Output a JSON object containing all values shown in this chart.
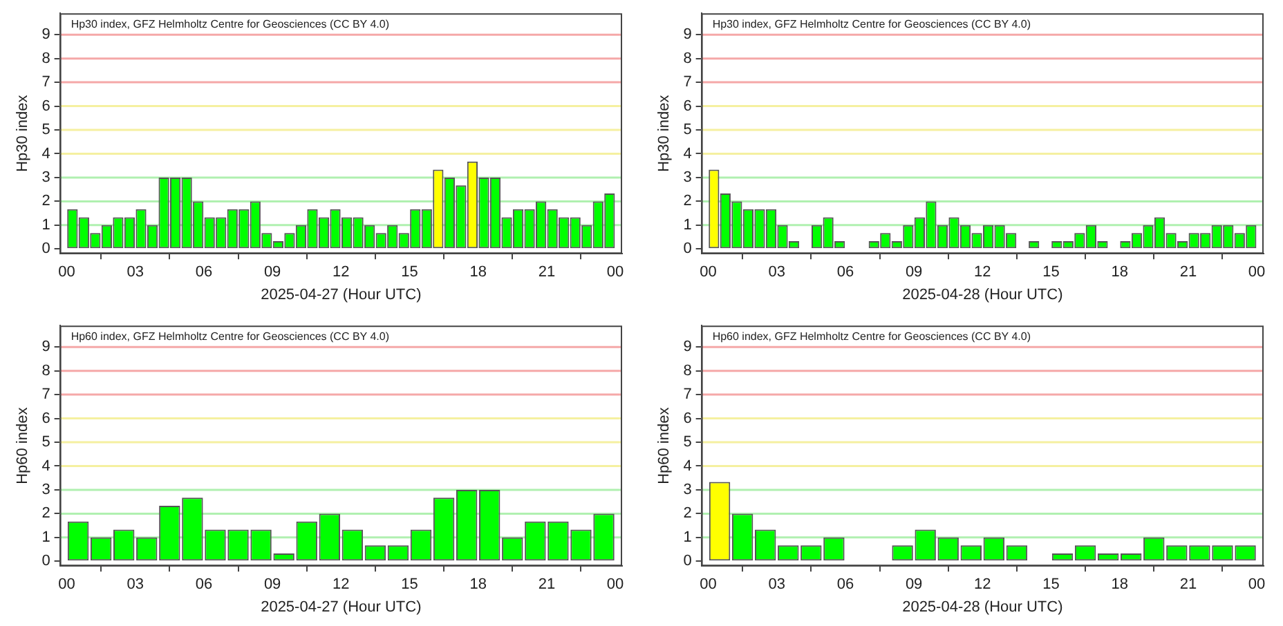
{
  "chart_data": [
    {
      "type": "bar",
      "title": "Hp30 index, GFZ Helmholtz Centre for Geosciences (CC BY 4.0)",
      "xlabel": "2025-04-27 (Hour UTC)",
      "ylabel": "Hp30 index",
      "x": [
        0.25,
        0.75,
        1.25,
        1.75,
        2.25,
        2.75,
        3.25,
        3.75,
        4.25,
        4.75,
        5.25,
        5.75,
        6.25,
        6.75,
        7.25,
        7.75,
        8.25,
        8.75,
        9.25,
        9.75,
        10.25,
        10.75,
        11.25,
        11.75,
        12.25,
        12.75,
        13.25,
        13.75,
        14.25,
        14.75,
        15.25,
        15.75,
        16.25,
        16.75,
        17.25,
        17.75,
        18.25,
        18.75,
        19.25,
        19.75,
        20.25,
        20.75,
        21.25,
        21.75,
        22.25,
        22.75,
        23.25,
        23.75
      ],
      "values": [
        1.67,
        1.33,
        0.67,
        1,
        1.33,
        1.33,
        1.67,
        1,
        3,
        3,
        3,
        2,
        1.33,
        1.33,
        1.67,
        1.67,
        2,
        0.67,
        0.33,
        0.67,
        1,
        1.67,
        1.33,
        1.67,
        1.33,
        1.33,
        1,
        0.67,
        1,
        0.67,
        1.67,
        1.67,
        3.33,
        3,
        2.67,
        3.67,
        3,
        3,
        1.33,
        1.67,
        1.67,
        2,
        1.67,
        1.33,
        1.33,
        1,
        2,
        2.33
      ],
      "colors": [
        "#00ff00",
        "#00ff00",
        "#00ff00",
        "#00ff00",
        "#00ff00",
        "#00ff00",
        "#00ff00",
        "#00ff00",
        "#00ff00",
        "#00ff00",
        "#00ff00",
        "#00ff00",
        "#00ff00",
        "#00ff00",
        "#00ff00",
        "#00ff00",
        "#00ff00",
        "#00ff00",
        "#00ff00",
        "#00ff00",
        "#00ff00",
        "#00ff00",
        "#00ff00",
        "#00ff00",
        "#00ff00",
        "#00ff00",
        "#00ff00",
        "#00ff00",
        "#00ff00",
        "#00ff00",
        "#00ff00",
        "#00ff00",
        "#ffff00",
        "#00ff00",
        "#00ff00",
        "#ffff00",
        "#00ff00",
        "#00ff00",
        "#00ff00",
        "#00ff00",
        "#00ff00",
        "#00ff00",
        "#00ff00",
        "#00ff00",
        "#00ff00",
        "#00ff00",
        "#00ff00",
        "#00ff00"
      ],
      "xlim": [
        -0.3,
        24.3
      ],
      "xticks": [
        {
          "value": 0,
          "label": "00"
        },
        {
          "value": 3,
          "label": "03"
        },
        {
          "value": 6,
          "label": "06"
        },
        {
          "value": 9,
          "label": "09"
        },
        {
          "value": 12,
          "label": "12"
        },
        {
          "value": 15,
          "label": "15"
        },
        {
          "value": 18,
          "label": "18"
        },
        {
          "value": 21,
          "label": "21"
        },
        {
          "value": 24,
          "label": "00"
        }
      ],
      "ylim": [
        -0.2,
        9.9
      ],
      "yticks": [
        0,
        1,
        2,
        3,
        4,
        5,
        6,
        7,
        8,
        9
      ],
      "ref_lines": [
        {
          "axis": "y",
          "value": 1,
          "color": "#b0f0b0"
        },
        {
          "axis": "y",
          "value": 2,
          "color": "#b0f0b0"
        },
        {
          "axis": "y",
          "value": 3,
          "color": "#b0f0b0"
        },
        {
          "axis": "y",
          "value": 4,
          "color": "#f5f0a0"
        },
        {
          "axis": "y",
          "value": 5,
          "color": "#f5f0a0"
        },
        {
          "axis": "y",
          "value": 6,
          "color": "#f5f0a0"
        },
        {
          "axis": "y",
          "value": 7,
          "color": "#f5a8a8"
        },
        {
          "axis": "y",
          "value": 8,
          "color": "#f5a8a8"
        },
        {
          "axis": "y",
          "value": 9,
          "color": "#f5a8a8"
        }
      ]
    },
    {
      "type": "bar",
      "title": "Hp30 index, GFZ Helmholtz Centre for Geosciences (CC BY 4.0)",
      "xlabel": "2025-04-28 (Hour UTC)",
      "ylabel": "Hp30 index",
      "x": [
        0.25,
        0.75,
        1.25,
        1.75,
        2.25,
        2.75,
        3.25,
        3.75,
        4.25,
        4.75,
        5.25,
        5.75,
        6.25,
        6.75,
        7.25,
        7.75,
        8.25,
        8.75,
        9.25,
        9.75,
        10.25,
        10.75,
        11.25,
        11.75,
        12.25,
        12.75,
        13.25,
        13.75,
        14.25,
        14.75,
        15.25,
        15.75,
        16.25,
        16.75,
        17.25,
        17.75,
        18.25,
        18.75,
        19.25,
        19.75,
        20.25,
        20.75,
        21.25,
        21.75,
        22.25,
        22.75,
        23.25,
        23.75
      ],
      "values": [
        3.33,
        2.33,
        2,
        1.67,
        1.67,
        1.67,
        1,
        0.33,
        0,
        1,
        1.33,
        0.33,
        0,
        0,
        0.33,
        0.67,
        0.33,
        1,
        1.33,
        2,
        1,
        1.33,
        1,
        0.67,
        1,
        1,
        0.67,
        0,
        0.33,
        0,
        0.33,
        0.33,
        0.67,
        1,
        0.33,
        0,
        0.33,
        0.67,
        1,
        1.33,
        0.67,
        0.33,
        0.67,
        0.67,
        1,
        1,
        0.67,
        1
      ],
      "colors": [
        "#ffff00",
        "#00ff00",
        "#00ff00",
        "#00ff00",
        "#00ff00",
        "#00ff00",
        "#00ff00",
        "#00ff00",
        "#00ff00",
        "#00ff00",
        "#00ff00",
        "#00ff00",
        "#00ff00",
        "#00ff00",
        "#00ff00",
        "#00ff00",
        "#00ff00",
        "#00ff00",
        "#00ff00",
        "#00ff00",
        "#00ff00",
        "#00ff00",
        "#00ff00",
        "#00ff00",
        "#00ff00",
        "#00ff00",
        "#00ff00",
        "#00ff00",
        "#00ff00",
        "#00ff00",
        "#00ff00",
        "#00ff00",
        "#00ff00",
        "#00ff00",
        "#00ff00",
        "#00ff00",
        "#00ff00",
        "#00ff00",
        "#00ff00",
        "#00ff00",
        "#00ff00",
        "#00ff00",
        "#00ff00",
        "#00ff00",
        "#00ff00",
        "#00ff00",
        "#00ff00",
        "#00ff00"
      ],
      "xlim": [
        -0.3,
        24.3
      ],
      "xticks": [
        {
          "value": 0,
          "label": "00"
        },
        {
          "value": 3,
          "label": "03"
        },
        {
          "value": 6,
          "label": "06"
        },
        {
          "value": 9,
          "label": "09"
        },
        {
          "value": 12,
          "label": "12"
        },
        {
          "value": 15,
          "label": "15"
        },
        {
          "value": 18,
          "label": "18"
        },
        {
          "value": 21,
          "label": "21"
        },
        {
          "value": 24,
          "label": "00"
        }
      ],
      "ylim": [
        -0.2,
        9.9
      ],
      "yticks": [
        0,
        1,
        2,
        3,
        4,
        5,
        6,
        7,
        8,
        9
      ],
      "ref_lines": [
        {
          "axis": "y",
          "value": 1,
          "color": "#b0f0b0"
        },
        {
          "axis": "y",
          "value": 2,
          "color": "#b0f0b0"
        },
        {
          "axis": "y",
          "value": 3,
          "color": "#b0f0b0"
        },
        {
          "axis": "y",
          "value": 4,
          "color": "#f5f0a0"
        },
        {
          "axis": "y",
          "value": 5,
          "color": "#f5f0a0"
        },
        {
          "axis": "y",
          "value": 6,
          "color": "#f5f0a0"
        },
        {
          "axis": "y",
          "value": 7,
          "color": "#f5a8a8"
        },
        {
          "axis": "y",
          "value": 8,
          "color": "#f5a8a8"
        },
        {
          "axis": "y",
          "value": 9,
          "color": "#f5a8a8"
        }
      ]
    },
    {
      "type": "bar",
      "title": "Hp60 index, GFZ Helmholtz Centre for Geosciences (CC BY 4.0)",
      "xlabel": "2025-04-27 (Hour UTC)",
      "ylabel": "Hp60 index",
      "x": [
        0.5,
        1.5,
        2.5,
        3.5,
        4.5,
        5.5,
        6.5,
        7.5,
        8.5,
        9.5,
        10.5,
        11.5,
        12.5,
        13.5,
        14.5,
        15.5,
        16.5,
        17.5,
        18.5,
        19.5,
        20.5,
        21.5,
        22.5,
        23.5
      ],
      "values": [
        1.67,
        1,
        1.33,
        1,
        2.33,
        2.67,
        1.33,
        1.33,
        1.33,
        0.33,
        1.67,
        2,
        1.33,
        0.67,
        0.67,
        1.33,
        2.67,
        3,
        3,
        1,
        1.67,
        1.67,
        1.33,
        2
      ],
      "colors": [
        "#00ff00",
        "#00ff00",
        "#00ff00",
        "#00ff00",
        "#00ff00",
        "#00ff00",
        "#00ff00",
        "#00ff00",
        "#00ff00",
        "#00ff00",
        "#00ff00",
        "#00ff00",
        "#00ff00",
        "#00ff00",
        "#00ff00",
        "#00ff00",
        "#00ff00",
        "#00ff00",
        "#00ff00",
        "#00ff00",
        "#00ff00",
        "#00ff00",
        "#00ff00",
        "#00ff00"
      ],
      "xlim": [
        -0.3,
        24.3
      ],
      "xticks": [
        {
          "value": 0,
          "label": "00"
        },
        {
          "value": 3,
          "label": "03"
        },
        {
          "value": 6,
          "label": "06"
        },
        {
          "value": 9,
          "label": "09"
        },
        {
          "value": 12,
          "label": "12"
        },
        {
          "value": 15,
          "label": "15"
        },
        {
          "value": 18,
          "label": "18"
        },
        {
          "value": 21,
          "label": "21"
        },
        {
          "value": 24,
          "label": "00"
        }
      ],
      "ylim": [
        -0.2,
        9.9
      ],
      "yticks": [
        0,
        1,
        2,
        3,
        4,
        5,
        6,
        7,
        8,
        9
      ],
      "ref_lines": [
        {
          "axis": "y",
          "value": 1,
          "color": "#b0f0b0"
        },
        {
          "axis": "y",
          "value": 2,
          "color": "#b0f0b0"
        },
        {
          "axis": "y",
          "value": 3,
          "color": "#b0f0b0"
        },
        {
          "axis": "y",
          "value": 4,
          "color": "#f5f0a0"
        },
        {
          "axis": "y",
          "value": 5,
          "color": "#f5f0a0"
        },
        {
          "axis": "y",
          "value": 6,
          "color": "#f5f0a0"
        },
        {
          "axis": "y",
          "value": 7,
          "color": "#f5a8a8"
        },
        {
          "axis": "y",
          "value": 8,
          "color": "#f5a8a8"
        },
        {
          "axis": "y",
          "value": 9,
          "color": "#f5a8a8"
        }
      ]
    },
    {
      "type": "bar",
      "title": "Hp60 index, GFZ Helmholtz Centre for Geosciences (CC BY 4.0)",
      "xlabel": "2025-04-28 (Hour UTC)",
      "ylabel": "Hp60 index",
      "x": [
        0.5,
        1.5,
        2.5,
        3.5,
        4.5,
        5.5,
        6.5,
        7.5,
        8.5,
        9.5,
        10.5,
        11.5,
        12.5,
        13.5,
        14.5,
        15.5,
        16.5,
        17.5,
        18.5,
        19.5,
        20.5,
        21.5,
        22.5,
        23.5
      ],
      "values": [
        3.33,
        2,
        1.33,
        0.67,
        0.67,
        1,
        0,
        0,
        0.67,
        1.33,
        1,
        0.67,
        1,
        0.67,
        0,
        0.33,
        0.67,
        0.33,
        0.33,
        1,
        0.67,
        0.67,
        0.67,
        0.67
      ],
      "colors": [
        "#ffff00",
        "#00ff00",
        "#00ff00",
        "#00ff00",
        "#00ff00",
        "#00ff00",
        "#00ff00",
        "#00ff00",
        "#00ff00",
        "#00ff00",
        "#00ff00",
        "#00ff00",
        "#00ff00",
        "#00ff00",
        "#00ff00",
        "#00ff00",
        "#00ff00",
        "#00ff00",
        "#00ff00",
        "#00ff00",
        "#00ff00",
        "#00ff00",
        "#00ff00",
        "#00ff00"
      ],
      "xlim": [
        -0.3,
        24.3
      ],
      "xticks": [
        {
          "value": 0,
          "label": "00"
        },
        {
          "value": 3,
          "label": "03"
        },
        {
          "value": 6,
          "label": "06"
        },
        {
          "value": 9,
          "label": "09"
        },
        {
          "value": 12,
          "label": "12"
        },
        {
          "value": 15,
          "label": "15"
        },
        {
          "value": 18,
          "label": "18"
        },
        {
          "value": 21,
          "label": "21"
        },
        {
          "value": 24,
          "label": "00"
        }
      ],
      "ylim": [
        -0.2,
        9.9
      ],
      "yticks": [
        0,
        1,
        2,
        3,
        4,
        5,
        6,
        7,
        8,
        9
      ],
      "ref_lines": [
        {
          "axis": "y",
          "value": 1,
          "color": "#b0f0b0"
        },
        {
          "axis": "y",
          "value": 2,
          "color": "#b0f0b0"
        },
        {
          "axis": "y",
          "value": 3,
          "color": "#b0f0b0"
        },
        {
          "axis": "y",
          "value": 4,
          "color": "#f5f0a0"
        },
        {
          "axis": "y",
          "value": 5,
          "color": "#f5f0a0"
        },
        {
          "axis": "y",
          "value": 6,
          "color": "#f5f0a0"
        },
        {
          "axis": "y",
          "value": 7,
          "color": "#f5a8a8"
        },
        {
          "axis": "y",
          "value": 8,
          "color": "#f5a8a8"
        },
        {
          "axis": "y",
          "value": 9,
          "color": "#f5a8a8"
        }
      ]
    }
  ]
}
